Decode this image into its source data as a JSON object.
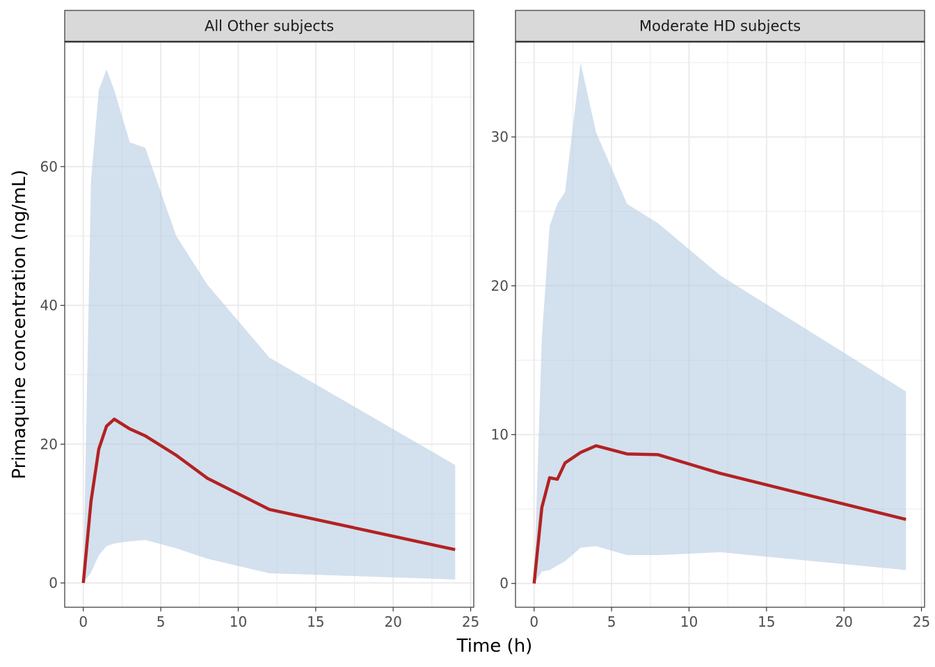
{
  "chart_data": {
    "type": "area",
    "xlabel": "Time (h)",
    "ylabel": "Primaquine concentration (ng/mL)",
    "grid": true,
    "colors": {
      "band": "#b5cbe3",
      "line": "#b22222"
    },
    "panels": [
      {
        "strip": "All Other subjects",
        "xlim": [
          -1.2,
          25.2
        ],
        "ylim": [
          -3.5,
          78
        ],
        "x_ticks": [
          0,
          5,
          10,
          15,
          20,
          25
        ],
        "y_ticks": [
          0,
          20,
          40,
          60
        ],
        "x": [
          0,
          0.5,
          1,
          1.5,
          2,
          3,
          4,
          6,
          8,
          12,
          24
        ],
        "upper": [
          0.5,
          58,
          71,
          74,
          71,
          63.5,
          62.7,
          50,
          43,
          32.5,
          17
        ],
        "lower": [
          0,
          1.5,
          4,
          5.3,
          5.7,
          6,
          6.2,
          5,
          3.5,
          1.4,
          0.5
        ],
        "median": [
          0,
          11.8,
          19.3,
          22.6,
          23.6,
          22.2,
          21.2,
          18.4,
          15.1,
          10.6,
          4.8
        ]
      },
      {
        "strip": "Moderate HD subjects",
        "xlim": [
          -1.2,
          25.2
        ],
        "ylim": [
          -1.6,
          36.4
        ],
        "x_ticks": [
          0,
          5,
          10,
          15,
          20,
          25
        ],
        "y_ticks": [
          0,
          10,
          20,
          30
        ],
        "x": [
          0,
          0.5,
          1,
          1.5,
          2,
          3,
          4,
          6,
          8,
          12,
          24
        ],
        "upper": [
          0.2,
          16.5,
          24,
          25.5,
          26.3,
          35,
          30.3,
          25.5,
          24.2,
          20.7,
          12.9
        ],
        "lower": [
          0,
          0.8,
          0.9,
          1.2,
          1.5,
          2.4,
          2.5,
          1.9,
          1.9,
          2.1,
          0.9
        ],
        "median": [
          0,
          5.1,
          7.1,
          7.0,
          8.1,
          8.8,
          9.25,
          8.7,
          8.65,
          7.4,
          4.3
        ]
      }
    ]
  }
}
